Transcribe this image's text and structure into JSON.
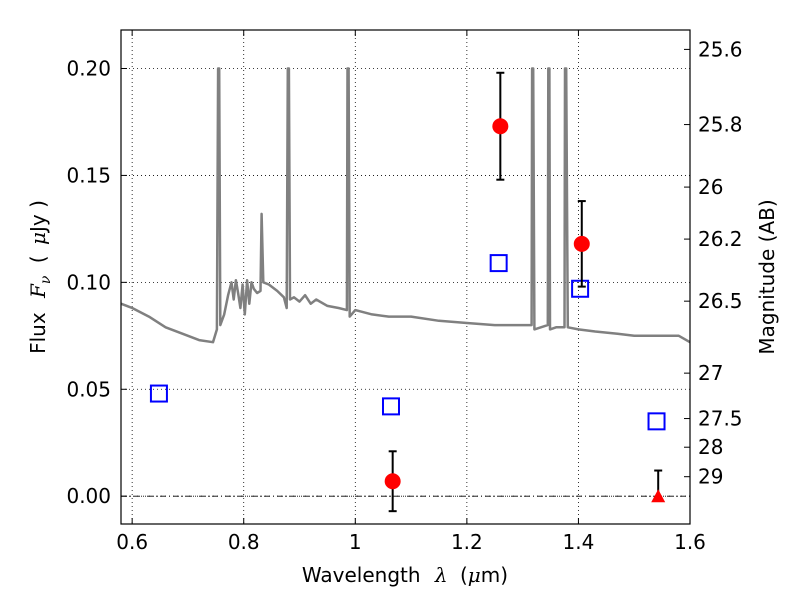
{
  "chart_data": {
    "type": "scatter",
    "title": "",
    "xlim": [
      0.58,
      1.6
    ],
    "ylim": [
      -0.013,
      0.218
    ],
    "grid": true,
    "x_ticks": [
      {
        "value": 0.6,
        "label": "0.6"
      },
      {
        "value": 0.8,
        "label": "0.8"
      },
      {
        "value": 1.0,
        "label": "1"
      },
      {
        "value": 1.2,
        "label": "1.2"
      },
      {
        "value": 1.4,
        "label": "1.4"
      },
      {
        "value": 1.6,
        "label": "1.6"
      }
    ],
    "y_ticks": [
      {
        "value": 0.0,
        "label": "0.00"
      },
      {
        "value": 0.05,
        "label": "0.05"
      },
      {
        "value": 0.1,
        "label": "0.10"
      },
      {
        "value": 0.15,
        "label": "0.15"
      },
      {
        "value": 0.2,
        "label": "0.20"
      }
    ],
    "xlabel": {
      "text": "Wavelength",
      "symbol": "λ",
      "unit_open": "(",
      "unit_mu": "μ",
      "unit_rest": "m)"
    },
    "ylabel": {
      "text": "Flux",
      "symbol": "F",
      "symbol_sub": "ν",
      "unit_open": "(",
      "unit_mu": "μ",
      "unit_rest": "Jy )"
    },
    "right_axis": {
      "label": "Magnitude (AB)",
      "ticks": [
        {
          "mag": 25.6,
          "label": "25.6"
        },
        {
          "mag": 25.8,
          "label": "25.8"
        },
        {
          "mag": 26.0,
          "label": "26"
        },
        {
          "mag": 26.2,
          "label": "26.2"
        },
        {
          "mag": 26.5,
          "label": "26.5"
        },
        {
          "mag": 27.0,
          "label": "27"
        },
        {
          "mag": 27.5,
          "label": "27.5"
        },
        {
          "mag": 28.0,
          "label": "28"
        },
        {
          "mag": 29.0,
          "label": "29"
        }
      ]
    },
    "model_spectrum": {
      "color": "#808080",
      "points": [
        [
          0.58,
          0.09
        ],
        [
          0.6,
          0.088
        ],
        [
          0.63,
          0.084
        ],
        [
          0.66,
          0.079
        ],
        [
          0.69,
          0.076
        ],
        [
          0.72,
          0.073
        ],
        [
          0.745,
          0.072
        ],
        [
          0.752,
          0.078
        ],
        [
          0.754,
          0.2
        ],
        [
          0.756,
          0.2
        ],
        [
          0.758,
          0.08
        ],
        [
          0.765,
          0.085
        ],
        [
          0.772,
          0.094
        ],
        [
          0.778,
          0.1
        ],
        [
          0.782,
          0.092
        ],
        [
          0.786,
          0.101
        ],
        [
          0.79,
          0.095
        ],
        [
          0.794,
          0.088
        ],
        [
          0.798,
          0.099
        ],
        [
          0.802,
          0.085
        ],
        [
          0.806,
          0.101
        ],
        [
          0.81,
          0.09
        ],
        [
          0.814,
          0.1
        ],
        [
          0.818,
          0.097
        ],
        [
          0.824,
          0.095
        ],
        [
          0.83,
          0.096
        ],
        [
          0.832,
          0.132
        ],
        [
          0.835,
          0.1
        ],
        [
          0.845,
          0.099
        ],
        [
          0.86,
          0.096
        ],
        [
          0.872,
          0.093
        ],
        [
          0.877,
          0.088
        ],
        [
          0.879,
          0.2
        ],
        [
          0.881,
          0.2
        ],
        [
          0.883,
          0.092
        ],
        [
          0.89,
          0.093
        ],
        [
          0.9,
          0.091
        ],
        [
          0.91,
          0.094
        ],
        [
          0.92,
          0.09
        ],
        [
          0.93,
          0.092
        ],
        [
          0.95,
          0.089
        ],
        [
          0.97,
          0.088
        ],
        [
          0.985,
          0.087
        ],
        [
          0.986,
          0.2
        ],
        [
          0.988,
          0.2
        ],
        [
          0.99,
          0.084
        ],
        [
          1.0,
          0.087
        ],
        [
          1.03,
          0.085
        ],
        [
          1.06,
          0.084
        ],
        [
          1.1,
          0.084
        ],
        [
          1.15,
          0.082
        ],
        [
          1.2,
          0.081
        ],
        [
          1.25,
          0.08
        ],
        [
          1.3,
          0.08
        ],
        [
          1.316,
          0.08
        ],
        [
          1.317,
          0.2
        ],
        [
          1.319,
          0.2
        ],
        [
          1.321,
          0.078
        ],
        [
          1.345,
          0.08
        ],
        [
          1.346,
          0.2
        ],
        [
          1.348,
          0.2
        ],
        [
          1.349,
          0.078
        ],
        [
          1.36,
          0.079
        ],
        [
          1.375,
          0.079
        ],
        [
          1.376,
          0.2
        ],
        [
          1.378,
          0.2
        ],
        [
          1.381,
          0.079
        ],
        [
          1.4,
          0.078
        ],
        [
          1.43,
          0.077
        ],
        [
          1.47,
          0.076
        ],
        [
          1.5,
          0.075
        ],
        [
          1.55,
          0.075
        ],
        [
          1.58,
          0.075
        ],
        [
          1.6,
          0.072
        ]
      ]
    },
    "model_photometry": {
      "marker": "open-square",
      "color": "#0000ff",
      "x": [
        0.648,
        1.064,
        1.257,
        1.403,
        1.54
      ],
      "y": [
        0.048,
        0.042,
        0.109,
        0.097,
        0.035
      ]
    },
    "observed": {
      "marker": "filled-circle",
      "color": "#ff0000",
      "x": [
        1.067,
        1.26,
        1.406
      ],
      "y": [
        0.007,
        0.173,
        0.118
      ],
      "yerr": [
        0.014,
        0.025,
        0.02
      ]
    },
    "upper_limit": {
      "marker": "filled-triangle",
      "color": "#ff0000",
      "x": 1.543,
      "y": 0.0,
      "err_top": 0.012
    }
  }
}
